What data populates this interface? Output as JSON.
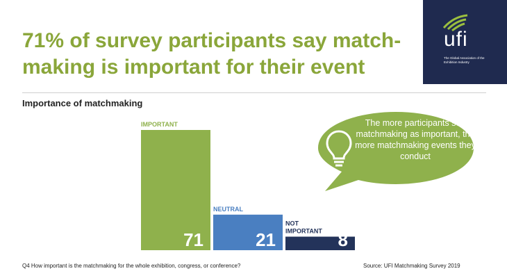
{
  "headline": "71% of survey participants say match-making is important for their event",
  "logo": {
    "name": "ufi",
    "tagline": "The Global Association of the Exhibition Industry"
  },
  "callout_text": "The more participants see matchmaking as important, the more matchmaking events they conduct",
  "footnote": "Q4 How important is the matchmaking for the whole exhibition, congress, or conference?",
  "source": "Source: UFI Matchmaking Survey 2019",
  "colors": {
    "headline": "#8aa63a",
    "important": "#8fb14c",
    "neutral": "#4a7fc1",
    "not_important": "#23335a",
    "logo_bg": "#1f2a4f",
    "logo_accent": "#9bbf3f",
    "callout": "#8fb14c"
  },
  "chart_data": {
    "type": "bar",
    "title": "Importance of matchmaking",
    "categories": [
      "IMPORTANT",
      "NEUTRAL",
      "NOT IMPORTANT"
    ],
    "values": [
      71,
      21,
      8
    ],
    "ylim": [
      0,
      71
    ],
    "grid": false,
    "legend": "none"
  }
}
